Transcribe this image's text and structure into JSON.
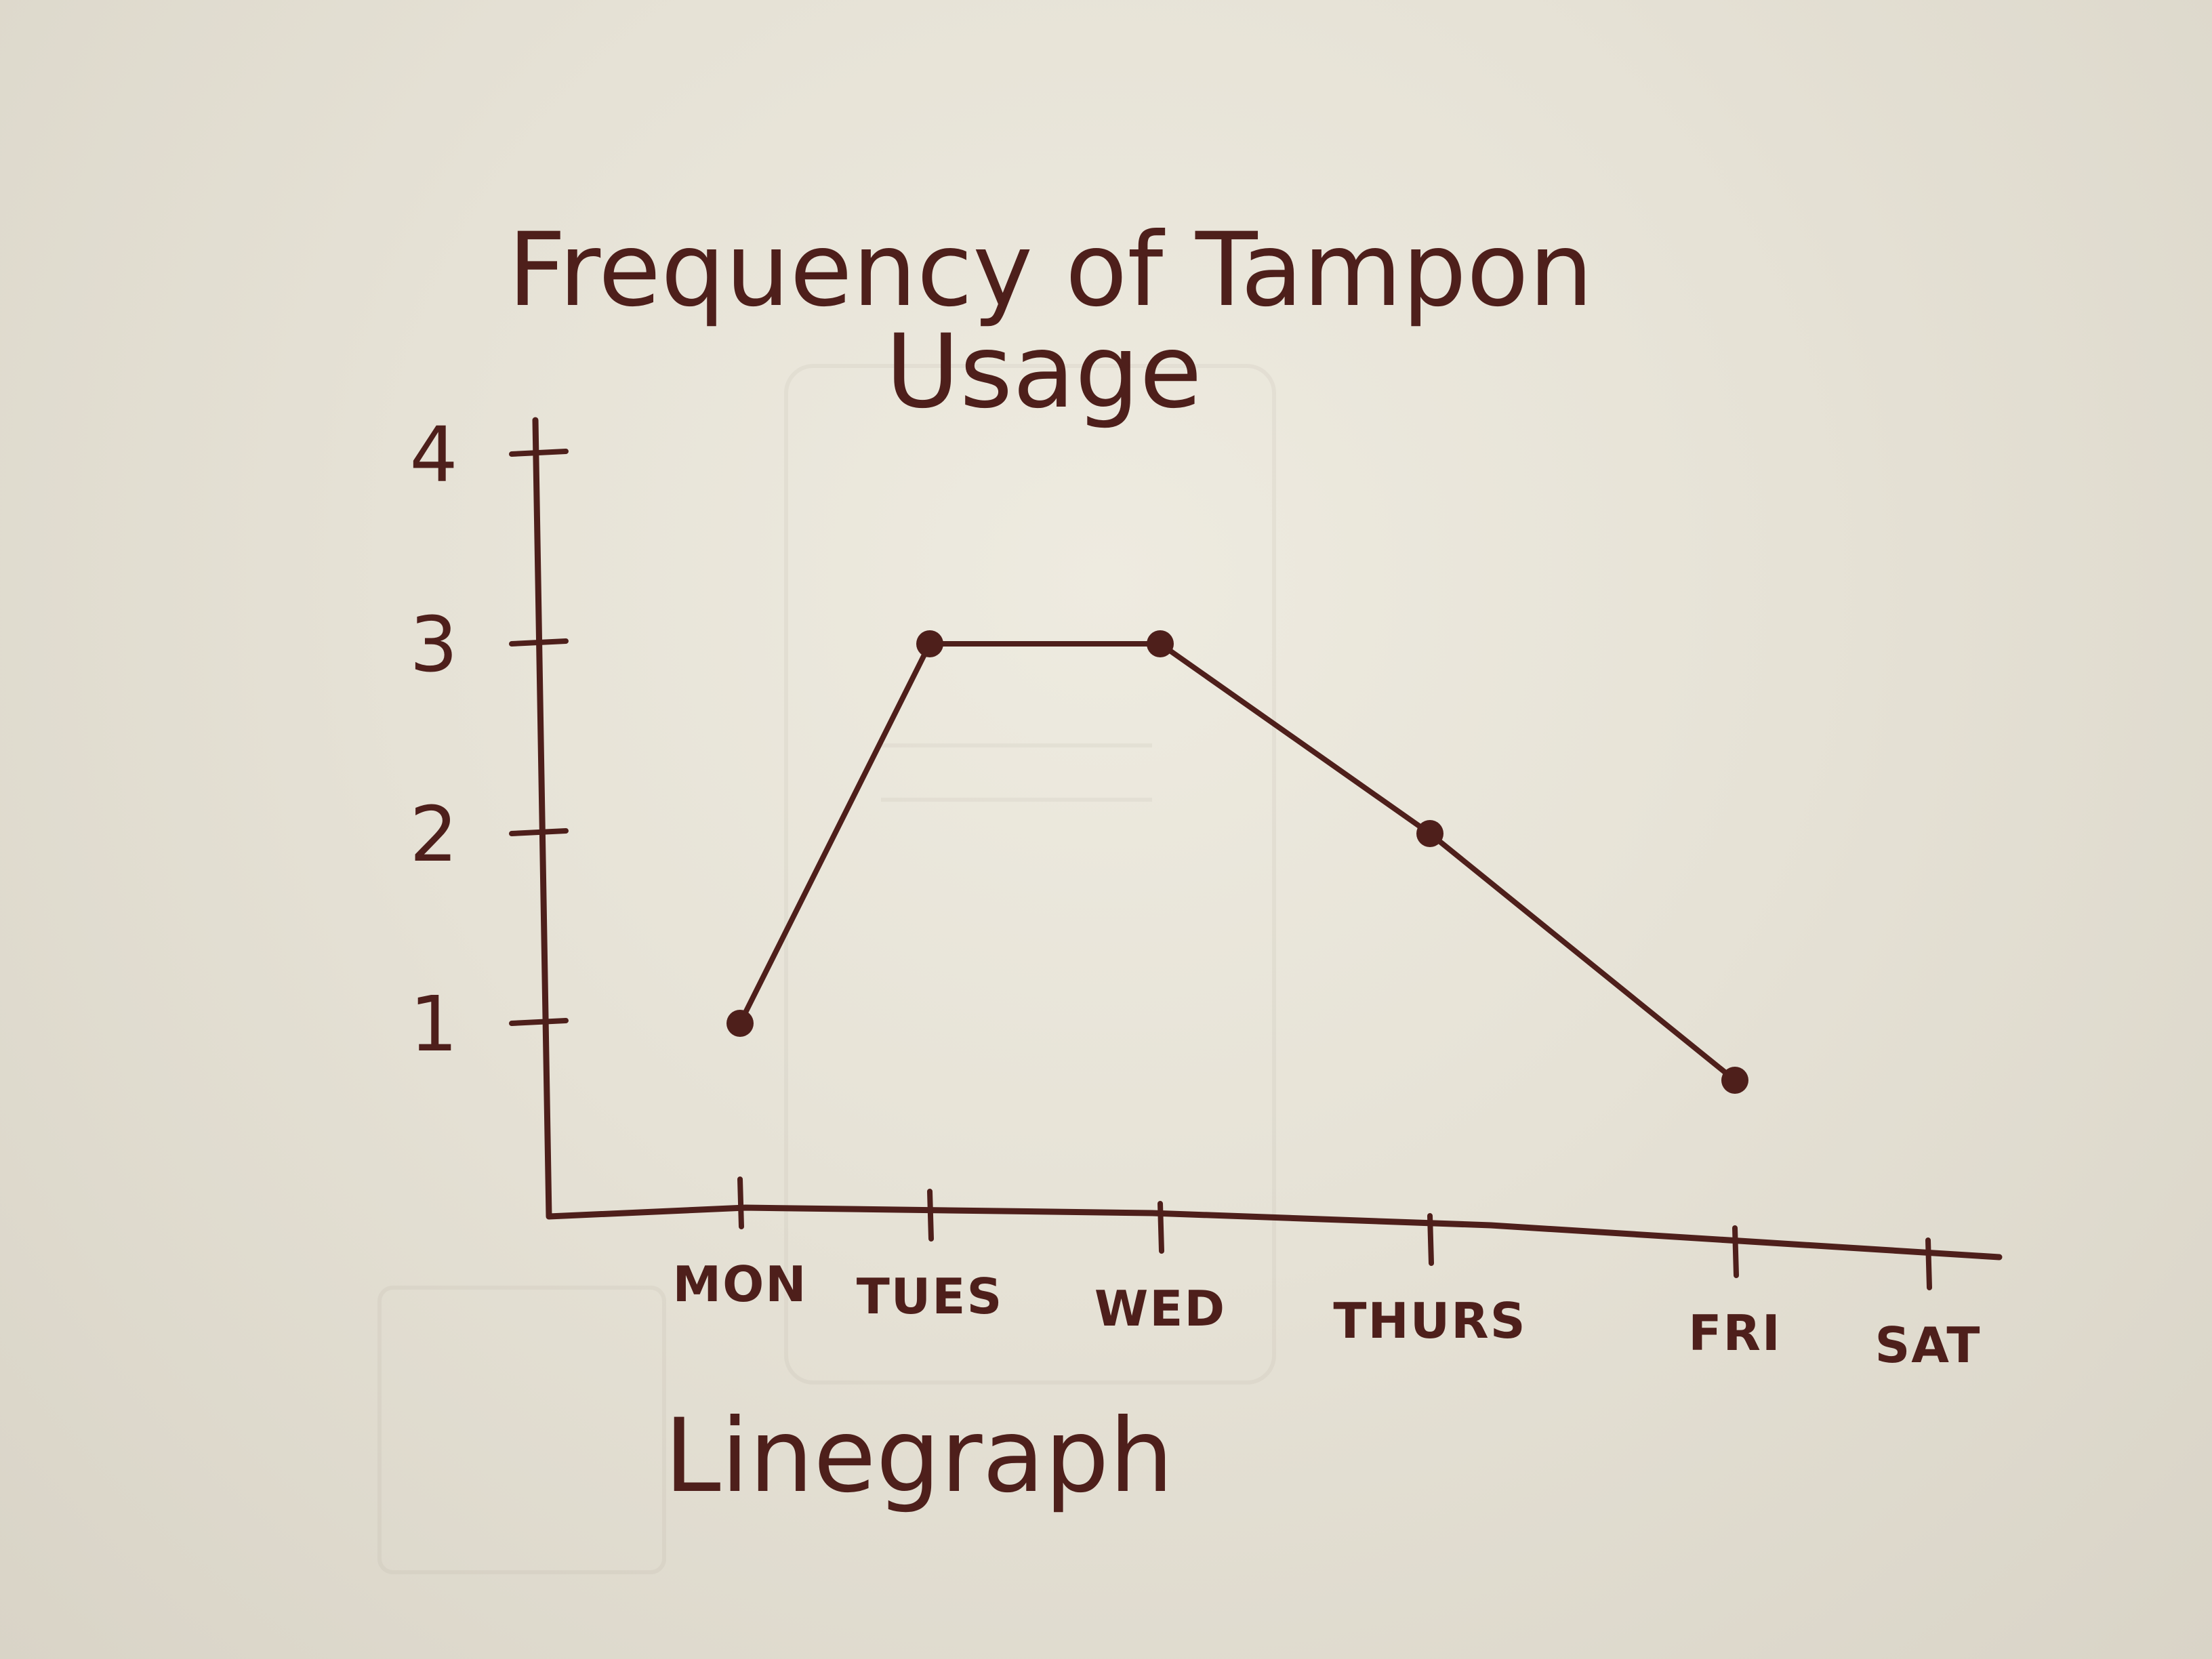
{
  "chart_data": {
    "type": "line",
    "title_line1": "Frequency of Tampon",
    "title_line2": "Usage",
    "caption": "Linegraph",
    "categories": [
      "MON",
      "TUES",
      "WED",
      "THURS",
      "FRI",
      "SAT"
    ],
    "series": [
      {
        "values": [
          1,
          3,
          3,
          2,
          0.7,
          null
        ]
      }
    ],
    "y_ticks": [
      1,
      2,
      3,
      4
    ],
    "ylim": [
      0,
      4.5
    ],
    "grid": false,
    "ink_color": "#4e1f1b"
  }
}
